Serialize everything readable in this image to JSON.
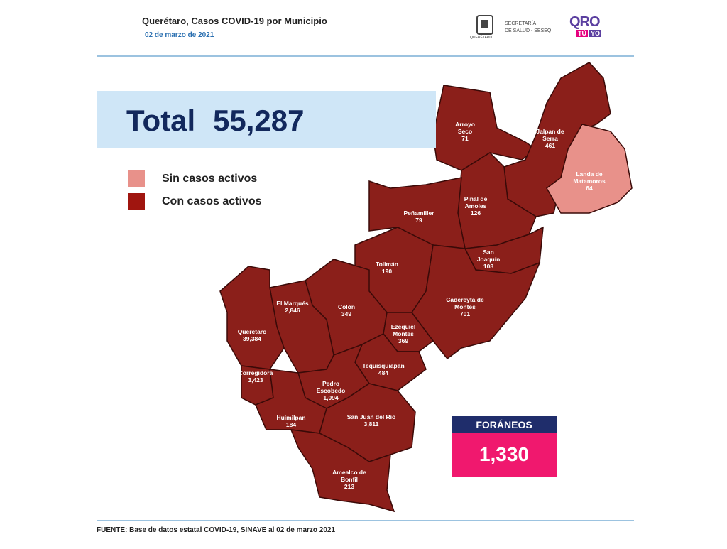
{
  "header": {
    "title": "Querétaro, Casos COVID-19 por Municipio",
    "date": "02 de marzo de 2021",
    "logo_caption": "QUERÉTARO",
    "agency_line1": "SECRETARÍA",
    "agency_line2": "DE SALUD - SESEQ",
    "brand": "QRO",
    "brand_sub1": "TÚ",
    "brand_sub2": "YO"
  },
  "total": {
    "label": "Total",
    "value": "55,287"
  },
  "legend": [
    {
      "label": "Sin casos activos",
      "color": "#e8918a"
    },
    {
      "label": "Con casos activos",
      "color": "#a0150f"
    }
  ],
  "municipalities": [
    {
      "name": "Arroyo Seco",
      "cases": "71",
      "color": "#8b1f1a"
    },
    {
      "name": "Jalpan de Serra",
      "cases": "461",
      "color": "#8b1f1a"
    },
    {
      "name": "Landa de Matamoros",
      "cases": "64",
      "color": "#e8918a"
    },
    {
      "name": "Pinal de Amoles",
      "cases": "126",
      "color": "#8b1f1a"
    },
    {
      "name": "Peñamiller",
      "cases": "79",
      "color": "#8b1f1a"
    },
    {
      "name": "San Joaquín",
      "cases": "108",
      "color": "#8b1f1a"
    },
    {
      "name": "Tolimán",
      "cases": "190",
      "color": "#8b1f1a"
    },
    {
      "name": "Cadereyta de Montes",
      "cases": "701",
      "color": "#8b1f1a"
    },
    {
      "name": "Colón",
      "cases": "349",
      "color": "#8b1f1a"
    },
    {
      "name": "El Marqués",
      "cases": "2,846",
      "color": "#8b1f1a"
    },
    {
      "name": "Querétaro",
      "cases": "39,384",
      "color": "#8b1f1a"
    },
    {
      "name": "Ezequiel Montes",
      "cases": "369",
      "color": "#8b1f1a"
    },
    {
      "name": "Tequisquiapan",
      "cases": "484",
      "color": "#8b1f1a"
    },
    {
      "name": "Corregidora",
      "cases": "3,423",
      "color": "#8b1f1a"
    },
    {
      "name": "Pedro Escobedo",
      "cases": "1,094",
      "color": "#8b1f1a"
    },
    {
      "name": "Huimilpan",
      "cases": "184",
      "color": "#8b1f1a"
    },
    {
      "name": "San Juan del Río",
      "cases": "3,811",
      "color": "#8b1f1a"
    },
    {
      "name": "Amealco de Bonfil",
      "cases": "213",
      "color": "#8b1f1a"
    }
  ],
  "foraneos": {
    "label": "FORÁNEOS",
    "value": "1,330"
  },
  "footer": "FUENTE:  Base de datos estatal COVID-19,  SINAVE  al 02 de marzo 2021"
}
